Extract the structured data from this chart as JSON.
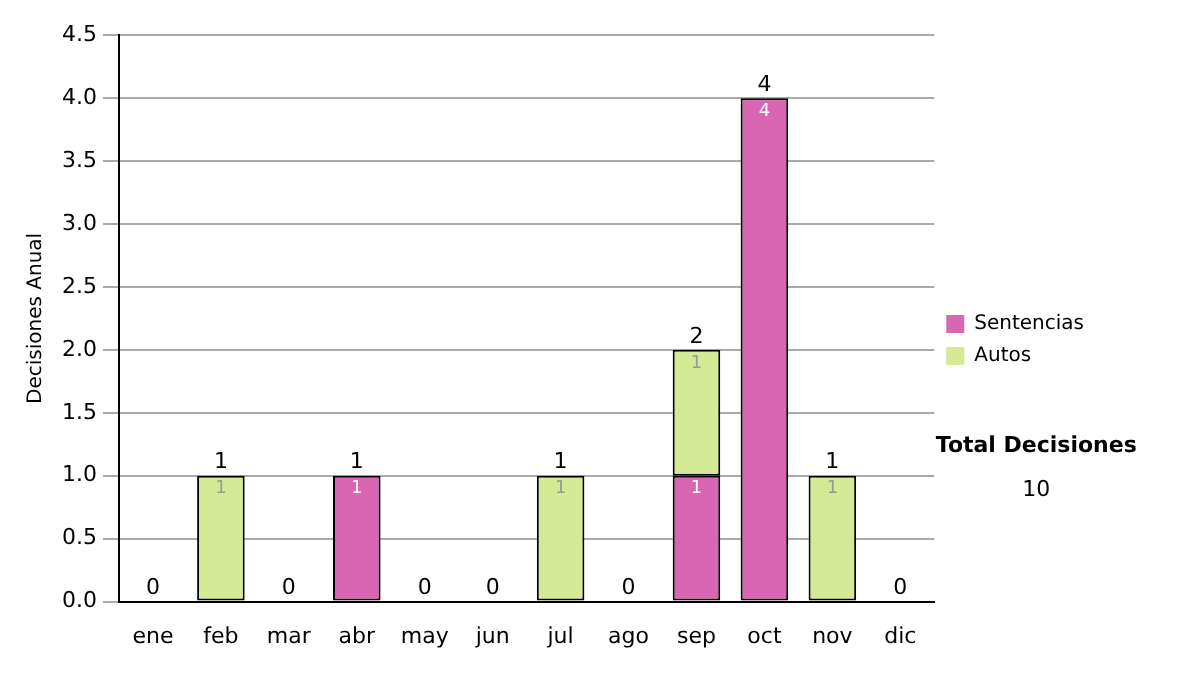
{
  "chart_data": {
    "type": "bar",
    "ylabel": "Decisiones Anual",
    "categories": [
      "ene",
      "feb",
      "mar",
      "abr",
      "may",
      "jun",
      "jul",
      "ago",
      "sep",
      "oct",
      "nov",
      "dic"
    ],
    "series": [
      {
        "name": "Sentencias",
        "color": "#d966b3",
        "values": [
          0,
          0,
          0,
          1,
          0,
          0,
          0,
          0,
          1,
          4,
          0,
          0
        ],
        "value_labels": [
          null,
          null,
          null,
          "1",
          null,
          null,
          null,
          null,
          "1",
          "4",
          null,
          null
        ]
      },
      {
        "name": "Autos",
        "color": "#d4ea94",
        "values": [
          0,
          1,
          0,
          0,
          0,
          0,
          1,
          0,
          1,
          0,
          1,
          0
        ],
        "value_labels": [
          null,
          "1",
          null,
          null,
          null,
          null,
          "1",
          null,
          "1",
          null,
          "1",
          null
        ]
      }
    ],
    "stacked": true,
    "totals": [
      "0",
      "1",
      "0",
      "1",
      "0",
      "0",
      "1",
      "0",
      "2",
      "4",
      "1",
      "0"
    ],
    "ylim": [
      0,
      4.5
    ],
    "yticks": [
      {
        "value": 0,
        "label": "0.0"
      },
      0.5,
      {
        "value": 1,
        "label": "1.0"
      },
      1.5,
      {
        "value": 2,
        "label": "2.0"
      },
      2.5,
      {
        "value": 3,
        "label": "3.0"
      },
      3.5,
      {
        "value": 4,
        "label": "4.0"
      },
      4.5
    ],
    "grid": "y",
    "legend": "right",
    "annotations": [
      "Total Decisiones",
      "10"
    ]
  }
}
